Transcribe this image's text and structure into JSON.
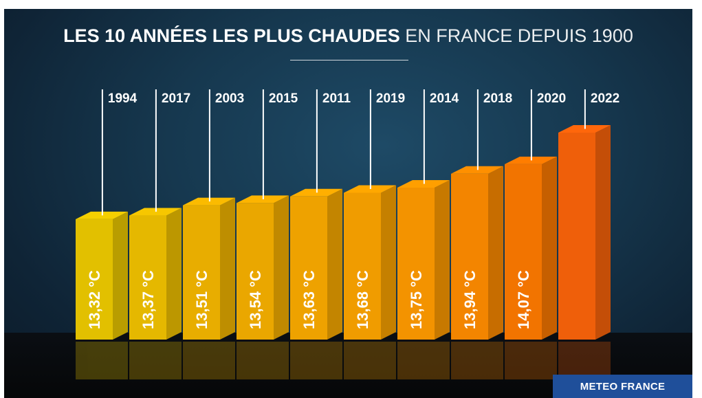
{
  "title": {
    "strong": "LES 10 ANNÉES LES PLUS CHAUDES",
    "light": "EN FRANCE DEPUIS 1900"
  },
  "source": "METEO FRANCE",
  "colors": {
    "first_bar": "#e0bd00",
    "last_bar": "#ef5f0a",
    "background": "#16384f"
  },
  "chart_data": {
    "type": "bar",
    "categories": [
      "1994",
      "2017",
      "2003",
      "2015",
      "2011",
      "2019",
      "2014",
      "2018",
      "2020",
      "2022"
    ],
    "values": [
      13.32,
      13.37,
      13.51,
      13.54,
      13.63,
      13.68,
      13.75,
      13.94,
      14.07,
      14.5
    ],
    "value_labels": [
      "13,32 °C",
      "13,37 °C",
      "13,51 °C",
      "13,54 °C",
      "13,63 °C",
      "13,68 °C",
      "13,75 °C",
      "13,94 °C",
      "14,07 °C",
      ""
    ],
    "unit": "°C",
    "bar_colors": [
      "#e2c000",
      "#e5b800",
      "#e8ad00",
      "#eaa700",
      "#eea200",
      "#f09c00",
      "#f39300",
      "#f38500",
      "#f27400",
      "#ef5f0a"
    ]
  }
}
